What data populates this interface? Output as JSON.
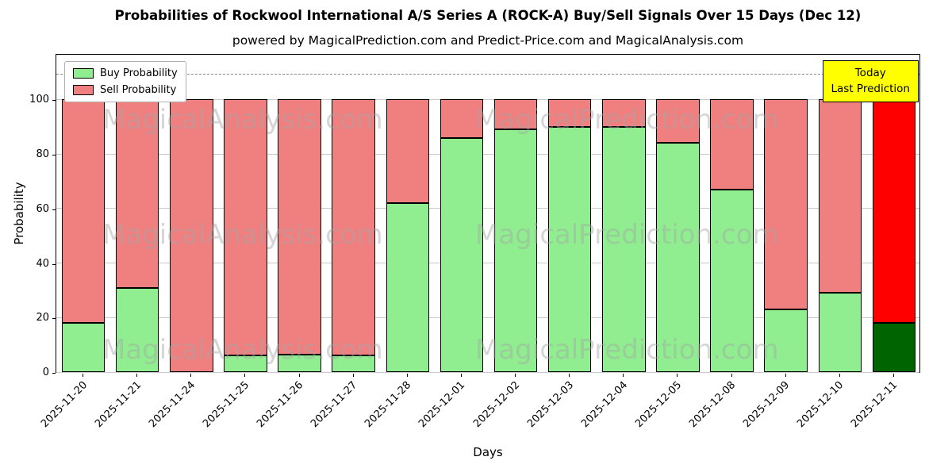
{
  "chart_data": {
    "type": "bar",
    "stacked": true,
    "title": "Probabilities of Rockwool International A/S Series A (ROCK-A) Buy/Sell Signals Over 15 Days (Dec 12)",
    "subtitle": "powered by MagicalPrediction.com and Predict-Price.com and MagicalAnalysis.com",
    "xlabel": "Days",
    "ylabel": "Probability",
    "ylim": [
      0,
      117
    ],
    "yticks": [
      0,
      20,
      40,
      60,
      80,
      100
    ],
    "grid": "horizontal",
    "dashed_line_y": 110,
    "legend_position": "upper left",
    "categories": [
      "2025-11-20",
      "2025-11-21",
      "2025-11-24",
      "2025-11-25",
      "2025-11-26",
      "2025-11-27",
      "2025-11-28",
      "2025-12-01",
      "2025-12-02",
      "2025-12-03",
      "2025-12-04",
      "2025-12-05",
      "2025-12-08",
      "2025-12-09",
      "2025-12-10",
      "2025-12-11"
    ],
    "series": [
      {
        "name": "Buy Probability",
        "color": "#90ee90",
        "today_color": "#006400",
        "values": [
          18,
          31,
          0,
          6,
          6.5,
          6,
          62,
          86,
          89,
          90,
          90,
          84,
          67,
          23,
          29,
          18
        ]
      },
      {
        "name": "Sell Probability",
        "color": "#f08080",
        "today_color": "#ff0000",
        "values": [
          82,
          69,
          100,
          94,
          93.5,
          94,
          38,
          14,
          11,
          10,
          10,
          16,
          33,
          77,
          71,
          82
        ]
      }
    ],
    "today_index": 15,
    "annotation": {
      "line1": "Today",
      "line2": "Last Prediction",
      "bg_color": "#ffff00"
    },
    "watermarks": [
      "MagicalAnalysis.com",
      "MagicalPrediction.com"
    ]
  }
}
